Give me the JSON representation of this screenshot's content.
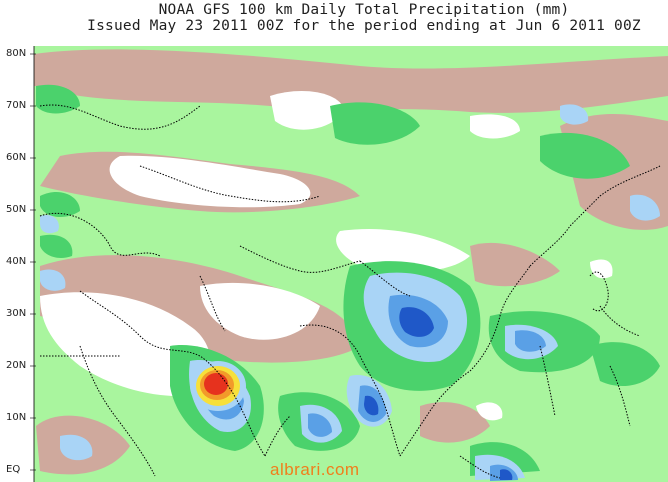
{
  "title": {
    "line1": "NOAA GFS 100 km Daily Total Precipitation (mm)",
    "line2": "Issued May 23 2011 00Z for the period ending at Jun 6 2011 00Z"
  },
  "map": {
    "lat_labels": [
      "80N",
      "70N",
      "60N",
      "50N",
      "40N",
      "30N",
      "20N",
      "10N",
      "EQ"
    ],
    "colors": {
      "ocean_background": "#ffffff",
      "dry_brown": "#cfa99d",
      "light_green": "#a9f59e",
      "green": "#4bd26c",
      "light_blue": "#a9d4f6",
      "blue": "#5aa0e6",
      "dark_blue": "#1f58c8",
      "yellow": "#f7e03a",
      "orange": "#f29a2a",
      "red": "#e6321e",
      "coastline": "#000000"
    }
  },
  "watermark": "albrari.com"
}
